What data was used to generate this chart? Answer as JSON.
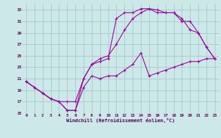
{
  "xlabel": "Windchill (Refroidissement éolien,°C)",
  "xlim": [
    -0.5,
    23.5
  ],
  "ylim": [
    15,
    34
  ],
  "xticks": [
    0,
    1,
    2,
    3,
    4,
    5,
    6,
    7,
    8,
    9,
    10,
    11,
    12,
    13,
    14,
    15,
    16,
    17,
    18,
    19,
    20,
    21,
    22,
    23
  ],
  "yticks": [
    15,
    17,
    19,
    21,
    23,
    25,
    27,
    29,
    31,
    33
  ],
  "bg_color": "#cce8e8",
  "line_color": "#990099",
  "grid_color": "#aacccc",
  "line1_x": [
    0,
    1,
    2,
    3,
    4,
    5,
    6,
    7,
    8,
    9,
    10,
    11,
    12,
    13,
    14,
    15,
    16,
    17,
    18,
    19,
    20,
    21,
    22,
    23
  ],
  "line1_y": [
    20.5,
    19.5,
    18.5,
    17.5,
    17.0,
    15.5,
    15.5,
    21.0,
    23.5,
    24.0,
    24.5,
    31.5,
    32.5,
    32.5,
    33.2,
    33.2,
    33.0,
    32.5,
    32.5,
    31.5,
    29.5,
    29.0,
    26.5,
    24.5
  ],
  "line2_x": [
    0,
    1,
    2,
    3,
    4,
    5,
    6,
    7,
    8,
    9,
    10,
    11,
    12,
    13,
    14,
    15,
    16,
    17,
    18,
    19,
    20,
    21,
    22,
    23
  ],
  "line2_y": [
    20.5,
    19.5,
    18.5,
    17.5,
    17.0,
    17.0,
    17.0,
    21.0,
    23.5,
    24.5,
    25.0,
    27.0,
    29.5,
    31.5,
    32.5,
    33.2,
    32.5,
    32.5,
    32.5,
    31.0,
    31.0,
    29.0,
    26.5,
    24.5
  ],
  "line3_x": [
    0,
    1,
    2,
    3,
    4,
    5,
    6,
    7,
    8,
    9,
    10,
    11,
    12,
    13,
    14,
    15,
    16,
    17,
    18,
    19,
    20,
    21,
    22,
    23
  ],
  "line3_y": [
    20.5,
    19.5,
    18.5,
    17.5,
    17.0,
    15.5,
    15.5,
    19.5,
    21.5,
    21.0,
    21.5,
    21.5,
    22.5,
    23.5,
    25.5,
    21.5,
    22.0,
    22.5,
    23.0,
    23.5,
    24.0,
    24.0,
    24.5,
    24.5
  ]
}
